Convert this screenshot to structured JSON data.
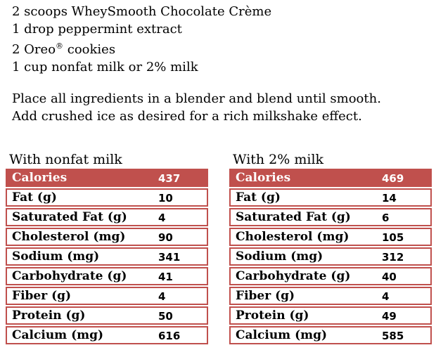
{
  "colors": {
    "accent_red": "#C0504D",
    "header_text": "#ffffff",
    "body_text": "#000000",
    "row_background": "#ffffff"
  },
  "recipe": {
    "ingredients": [
      {
        "text": "2 scoops WheySmooth Chocolate Crème"
      },
      {
        "text": "1 drop peppermint extract"
      },
      {
        "pre": "2 Oreo",
        "sup": "®",
        "post": " cookies"
      },
      {
        "text": "1 cup nonfat milk or 2% milk"
      }
    ],
    "instructions": [
      {
        "text": "Place all ingredients in a blender and blend until smooth."
      },
      {
        "text": "Add crushed ice as desired for a rich milkshake effect."
      }
    ]
  },
  "tables": [
    {
      "caption": "With nonfat milk",
      "rows": [
        {
          "label": "Calories",
          "value": "437"
        },
        {
          "label": "Fat (g)",
          "value": "10"
        },
        {
          "label": "Saturated Fat (g)",
          "value": "4"
        },
        {
          "label": "Cholesterol (mg)",
          "value": "90"
        },
        {
          "label": "Sodium (mg)",
          "value": "341"
        },
        {
          "label": "Carbohydrate (g)",
          "value": "41"
        },
        {
          "label": "Fiber (g)",
          "value": "4"
        },
        {
          "label": "Protein (g)",
          "value": "50"
        },
        {
          "label": "Calcium (mg)",
          "value": "616"
        }
      ]
    },
    {
      "caption": "With 2% milk",
      "rows": [
        {
          "label": "Calories",
          "value": "469"
        },
        {
          "label": "Fat (g)",
          "value": "14"
        },
        {
          "label": "Saturated Fat (g)",
          "value": "6"
        },
        {
          "label": "Cholesterol (mg)",
          "value": "105"
        },
        {
          "label": "Sodium (mg)",
          "value": "312"
        },
        {
          "label": "Carbohydrate (g)",
          "value": "40"
        },
        {
          "label": "Fiber (g)",
          "value": "4"
        },
        {
          "label": "Protein (g)",
          "value": "49"
        },
        {
          "label": "Calcium (mg)",
          "value": "585"
        }
      ]
    }
  ]
}
